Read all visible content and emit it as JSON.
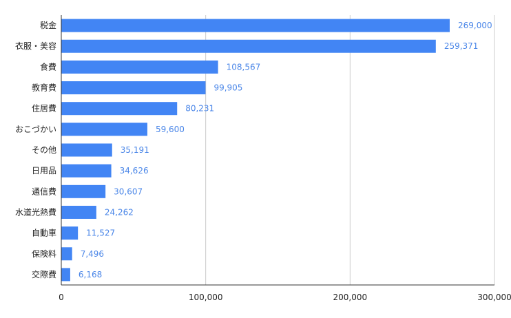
{
  "chart_data": {
    "type": "bar",
    "orientation": "horizontal",
    "categories": [
      "税金",
      "衣服・美容",
      "食費",
      "教育費",
      "住居費",
      "おこづかい",
      "その他",
      "日用品",
      "通信費",
      "水道光熱費",
      "自動車",
      "保険料",
      "交際費"
    ],
    "values": [
      269000,
      259371,
      108567,
      99905,
      80231,
      59600,
      35191,
      34626,
      30607,
      24262,
      11527,
      7496,
      6168
    ],
    "data_labels": [
      "269,000",
      "259,371",
      "108,567",
      "99,905",
      "80,231",
      "59,600",
      "35,191",
      "34,626",
      "30,607",
      "24,262",
      "11,527",
      "7,496",
      "6,168"
    ],
    "x_ticks": [
      0,
      100000,
      200000,
      300000
    ],
    "x_tick_labels": [
      "0",
      "100,000",
      "200,000",
      "300,000"
    ],
    "xlim": [
      0,
      300000
    ],
    "title": "",
    "xlabel": "",
    "ylabel": "",
    "grid": true,
    "legend": "none",
    "bar_color": "#4285f4",
    "label_color": "#4a86e8"
  }
}
